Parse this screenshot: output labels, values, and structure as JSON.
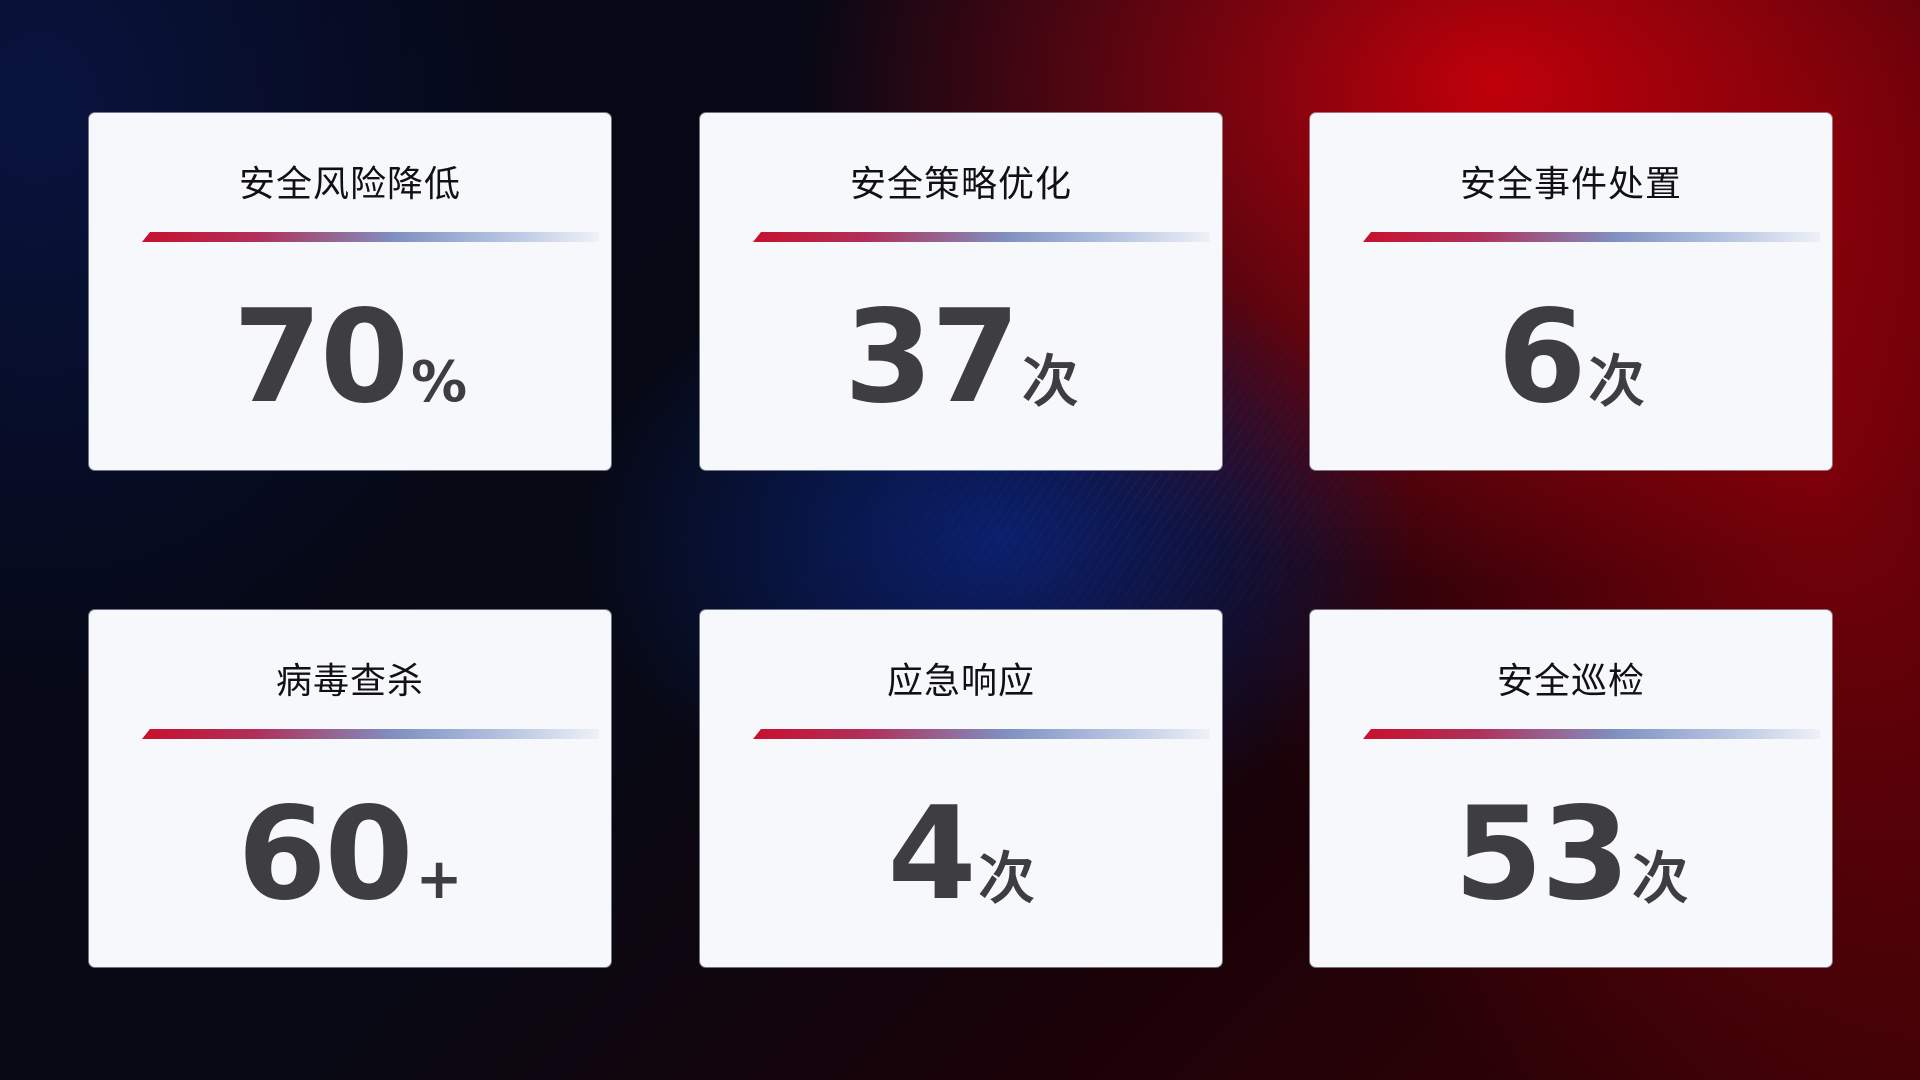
{
  "colors": {
    "accent_red": "#c8102e",
    "accent_blue": "#7f8fc0",
    "card_bg": "#f6f8fc",
    "value_text": "#3e3e40"
  },
  "cards": [
    {
      "title": "安全风险降低",
      "value": "70",
      "unit": "%"
    },
    {
      "title": "安全策略优化",
      "value": "37",
      "unit": "次"
    },
    {
      "title": "安全事件处置",
      "value": "6",
      "unit": "次"
    },
    {
      "title": "病毒查杀",
      "value": "60",
      "unit": "+"
    },
    {
      "title": "应急响应",
      "value": "4",
      "unit": "次"
    },
    {
      "title": "安全巡检",
      "value": "53",
      "unit": "次"
    }
  ]
}
